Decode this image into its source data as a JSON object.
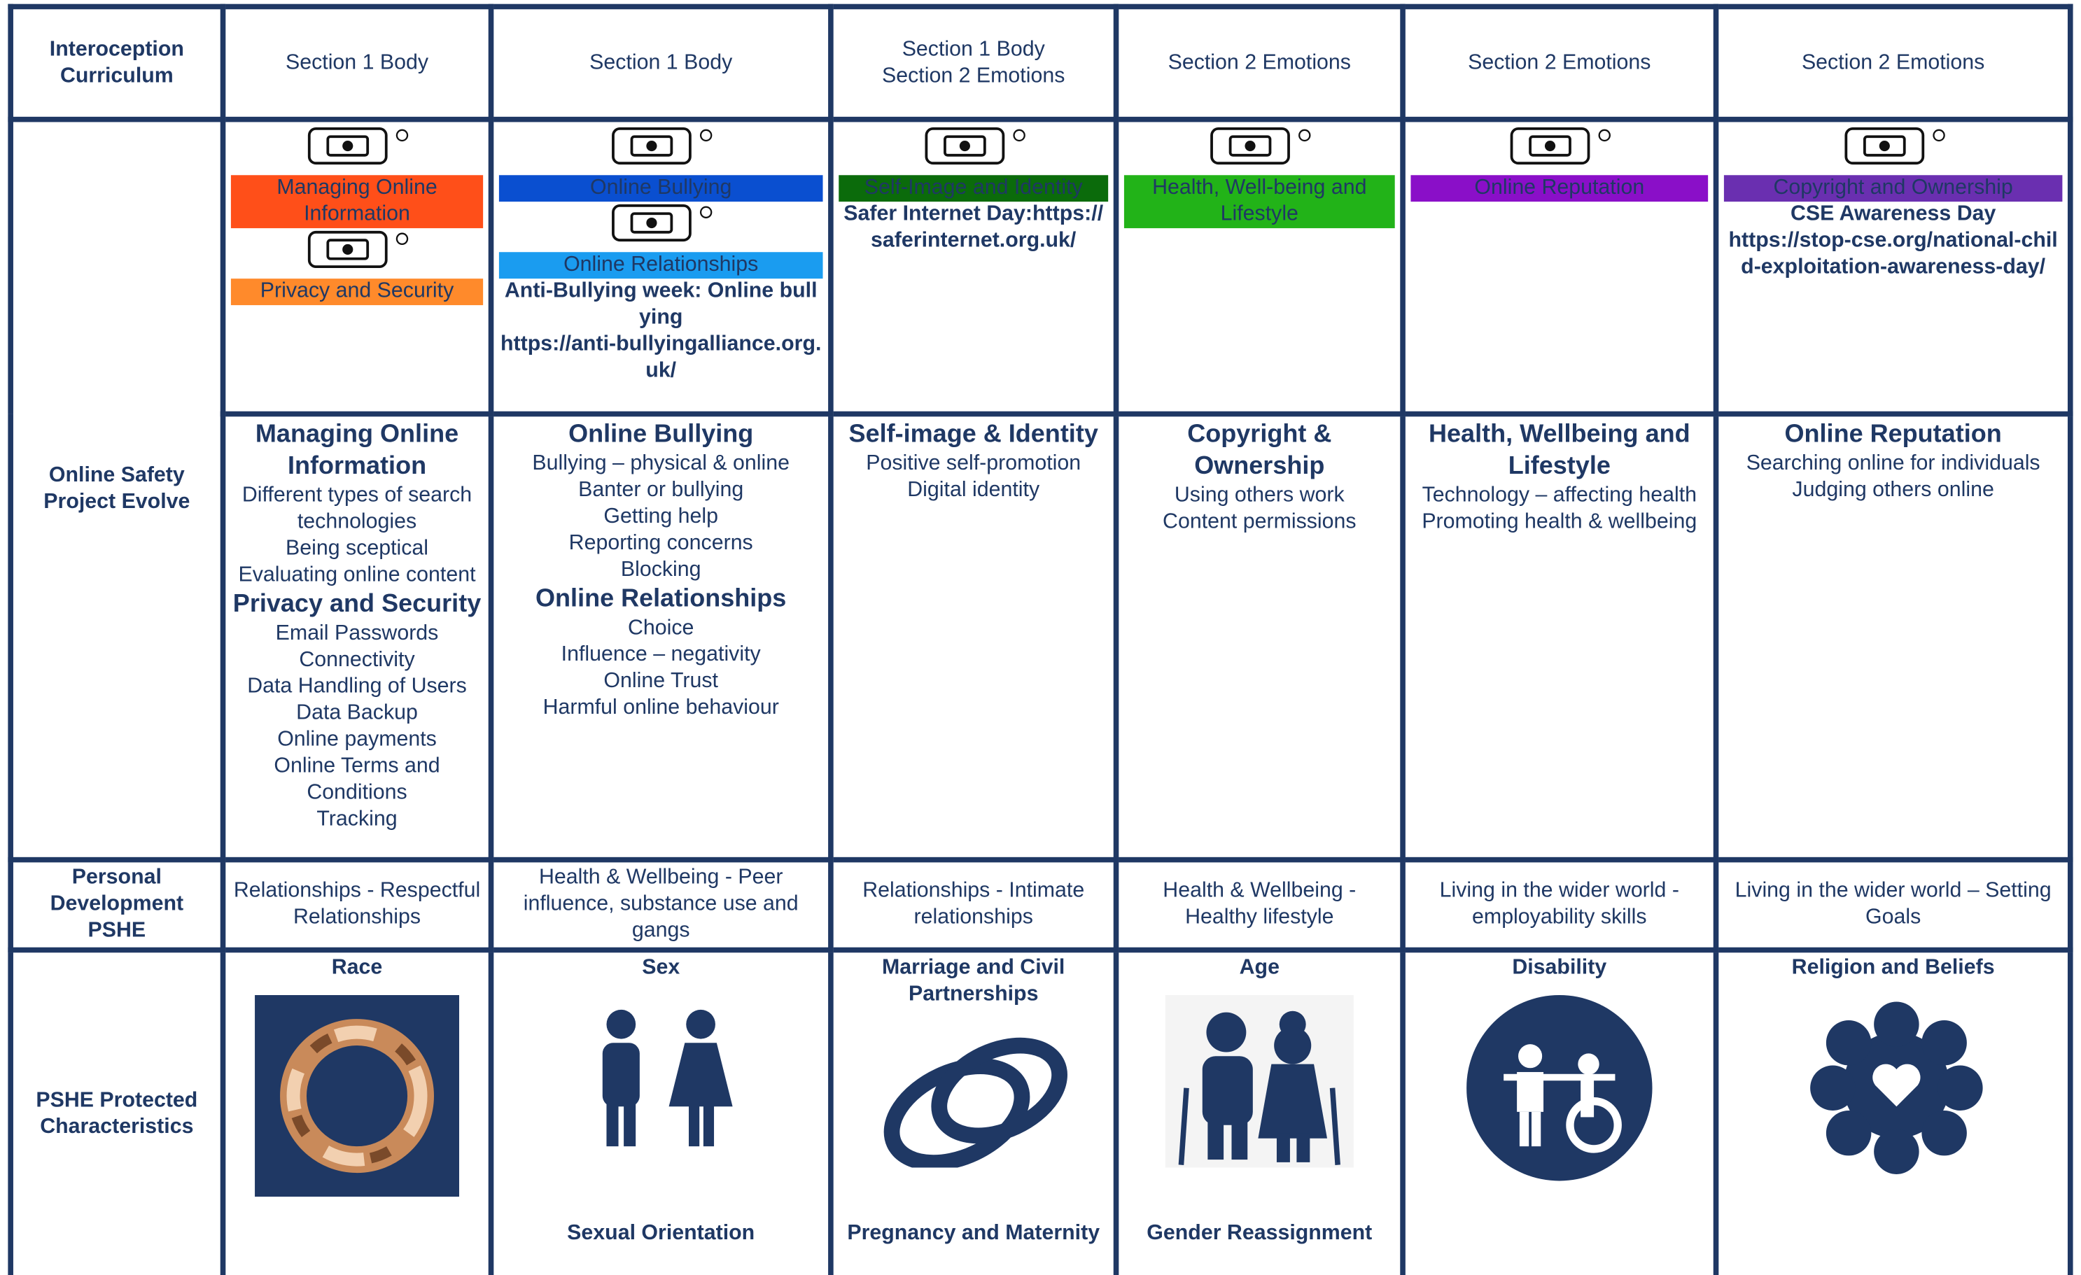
{
  "corner": "Interoception Curriculum",
  "row_labels": [
    "Online Safety Project Evolve",
    "Personal Development PSHE",
    "PSHE Protected Characteristics"
  ],
  "columns": [
    {
      "header": [
        "Section 1 Body"
      ],
      "badges": [
        {
          "label": "Managing Online Information",
          "color": "#ff4f19"
        },
        {
          "label": "Privacy and Security",
          "color": "#ff8a2b"
        }
      ],
      "event": [],
      "topics": [
        {
          "heading": "Managing Online Information",
          "items": [
            "Different types of search technologies",
            "Being sceptical",
            "Evaluating online content"
          ]
        },
        {
          "heading": "Privacy and Security",
          "items": [
            "Email Passwords",
            "Connectivity",
            "Data Handling of Users",
            "Data Backup",
            "Online payments",
            "Online Terms and Conditions",
            "Tracking"
          ]
        }
      ],
      "pshe": "Relationships - Respectful Relationships",
      "characteristics": [
        "Race"
      ]
    },
    {
      "header": [
        "Section 1 Body"
      ],
      "badges": [
        {
          "label": "Online Bullying",
          "color": "#0a4fd0"
        },
        {
          "label": "Online Relationships",
          "color": "#1a9cf0"
        }
      ],
      "event": [
        "Anti-Bullying week: Online bullying",
        "https://anti-bullyingalliance.org.uk/"
      ],
      "topics": [
        {
          "heading": "Online Bullying",
          "items": [
            "Bullying – physical & online",
            "Banter or bullying",
            "Getting help",
            "Reporting concerns",
            "Blocking"
          ]
        },
        {
          "heading": "Online Relationships",
          "items": [
            "Choice",
            "Influence – negativity",
            "Online Trust",
            "Harmful online behaviour"
          ]
        }
      ],
      "pshe": "Health & Wellbeing - Peer influence, substance use and gangs",
      "characteristics": [
        "Sex",
        "Sexual Orientation"
      ]
    },
    {
      "header": [
        "Section 1 Body",
        "Section 2 Emotions"
      ],
      "badges": [
        {
          "label": "Self-Image and Identity",
          "color": "#0b6b0b"
        }
      ],
      "event": [
        "Safer Internet Day:https://saferinternet.org.uk/"
      ],
      "topics": [
        {
          "heading": "Self-image & Identity",
          "items": [
            "Positive self-promotion",
            "Digital identity"
          ]
        }
      ],
      "pshe": "Relationships - Intimate relationships",
      "characteristics": [
        "Marriage and Civil Partnerships",
        "Pregnancy and Maternity"
      ]
    },
    {
      "header": [
        "Section 2 Emotions"
      ],
      "badges": [
        {
          "label": "Health, Well-being and Lifestyle",
          "color": "#22b318"
        }
      ],
      "event": [],
      "topics": [
        {
          "heading": "Copyright & Ownership",
          "items": [
            "Using others work",
            "Content permissions"
          ]
        }
      ],
      "pshe": "Health & Wellbeing - Healthy lifestyle",
      "characteristics": [
        "Age",
        "Gender Reassignment"
      ]
    },
    {
      "header": [
        "Section 2 Emotions"
      ],
      "badges": [
        {
          "label": "Online Reputation",
          "color": "#8a0fc8"
        }
      ],
      "event": [],
      "topics": [
        {
          "heading": "Health, Wellbeing and Lifestyle",
          "items": [
            "Technology – affecting health",
            "Promoting health & wellbeing"
          ]
        }
      ],
      "pshe": "Living in the wider world - employability skills",
      "characteristics": [
        "Disability"
      ]
    },
    {
      "header": [
        "Section 2 Emotions"
      ],
      "badges": [
        {
          "label": "Copyright and Ownership",
          "color": "#6a2fb0"
        }
      ],
      "event": [
        "CSE Awareness Day",
        "https://stop-cse.org/national-child-exploitation-awareness-day/"
      ],
      "topics": [
        {
          "heading": "Online Reputation",
          "items": [
            "Searching online for individuals",
            "Judging others online"
          ]
        }
      ],
      "pshe": "Living in the wider world – Setting Goals",
      "characteristics": [
        "Religion and Beliefs"
      ]
    }
  ]
}
